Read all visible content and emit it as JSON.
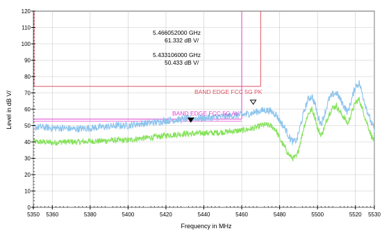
{
  "chart_data": {
    "type": "line",
    "title": "",
    "xlabel": "Frequency in MHz",
    "ylabel": "Level in dB  V/",
    "xlim": [
      5350,
      5530
    ],
    "ylim": [
      0,
      120
    ],
    "xticks": [
      5350,
      5360,
      5380,
      5400,
      5420,
      5440,
      5460,
      5480,
      5500,
      5520,
      5530
    ],
    "yticks": [
      0,
      10,
      20,
      30,
      40,
      50,
      60,
      70,
      80,
      90,
      100,
      110,
      120
    ],
    "grid": true,
    "colors": {
      "peak_trace": "#8ec5ee",
      "average_trace": "#86e25c",
      "limit_pk": "#e05060",
      "limit_av": "#e040d0",
      "axis": "#000000",
      "grid": "#c8c8c8"
    },
    "series": [
      {
        "key": "peak",
        "x": [
          5350,
          5355,
          5360,
          5365,
          5370,
          5375,
          5380,
          5385,
          5390,
          5395,
          5400,
          5405,
          5410,
          5415,
          5420,
          5425,
          5430,
          5435,
          5440,
          5445,
          5450,
          5455,
          5460,
          5465,
          5468,
          5470,
          5472,
          5475,
          5478,
          5480,
          5483,
          5485,
          5487,
          5489,
          5491,
          5493,
          5495,
          5497,
          5499,
          5500,
          5502,
          5504,
          5506,
          5508,
          5510,
          5512,
          5514,
          5516,
          5518,
          5520,
          5522,
          5524,
          5526,
          5528,
          5530
        ],
        "y": [
          49,
          49,
          48.5,
          48.5,
          48,
          48,
          48.5,
          49,
          49.5,
          50,
          50,
          51,
          51.5,
          52,
          53,
          53.5,
          54,
          54.5,
          54.5,
          55,
          55.5,
          56,
          56.5,
          57.5,
          58.5,
          59,
          59.5,
          59,
          57,
          53,
          48,
          43,
          40,
          41,
          50,
          59,
          66,
          68,
          62,
          56,
          51,
          58,
          66,
          69,
          70,
          66,
          62,
          58,
          66,
          74,
          76,
          68,
          60,
          53,
          47
        ],
        "noise": 2.2
      },
      {
        "key": "average",
        "x": [
          5350,
          5355,
          5360,
          5365,
          5370,
          5375,
          5380,
          5385,
          5390,
          5395,
          5400,
          5405,
          5410,
          5415,
          5420,
          5425,
          5430,
          5435,
          5440,
          5445,
          5450,
          5455,
          5460,
          5465,
          5468,
          5470,
          5472,
          5475,
          5478,
          5480,
          5483,
          5485,
          5487,
          5489,
          5491,
          5493,
          5495,
          5497,
          5499,
          5500,
          5502,
          5504,
          5506,
          5508,
          5510,
          5512,
          5514,
          5516,
          5518,
          5520,
          5522,
          5524,
          5526,
          5528,
          5530
        ],
        "y": [
          40,
          40,
          39.5,
          40,
          40,
          40,
          40.5,
          40.5,
          41,
          41,
          41,
          42,
          42.5,
          43,
          44,
          44.5,
          45,
          45,
          45.5,
          45.5,
          46,
          46.5,
          47,
          48,
          49,
          50,
          50.5,
          50,
          47.5,
          42,
          36,
          32,
          30,
          31,
          40,
          50,
          57,
          60,
          54,
          48,
          44,
          50,
          57,
          61,
          62,
          58,
          55,
          51,
          58,
          64,
          66,
          59,
          52,
          45,
          40
        ],
        "noise": 1.8
      }
    ],
    "limit_lines": [
      {
        "label": "BAND EDGE  FCC 5G PK",
        "y": 74,
        "x_start": 5350,
        "x_end": 5470
      },
      {
        "label": "BAND EDGE  FCC 5G AV",
        "y": 54,
        "x_start": 5350,
        "x_end": 5460
      }
    ],
    "band_edges": [
      {
        "x": 5470,
        "y_top": 120,
        "y_bottom": 74
      },
      {
        "x": 5460,
        "y_top": 120,
        "y_bottom": 54
      }
    ],
    "markers": [
      {
        "kind": "delta",
        "x": 5466.052,
        "y": 61.332,
        "freq_text": "5.466052000 GHz",
        "level_text": "61.332 dB   V/"
      },
      {
        "kind": "main",
        "x": 5433.106,
        "y": 50.433,
        "freq_text": "5.433106000 GHz",
        "level_text": "50.433 dB   V/"
      }
    ]
  }
}
